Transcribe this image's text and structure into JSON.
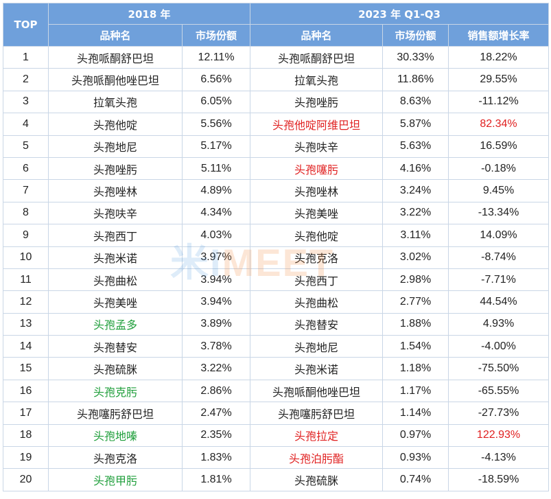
{
  "header": {
    "top_label": "TOP",
    "group_2018": "2018 年",
    "group_2023": "2023 年 Q1-Q3",
    "col_name_2018": "品种名",
    "col_share_2018": "市场份额",
    "col_name_2023": "品种名",
    "col_share_2023": "市场份额",
    "col_growth_2023": "销售额增长率"
  },
  "colors": {
    "header_bg": "#6fa0db",
    "red": "#e02020",
    "green": "#1e9e3a",
    "default": "#222222"
  },
  "watermark": {
    "part_a": "米I",
    "part_b": "MEET"
  },
  "rows": [
    {
      "rank": "1",
      "name2018": "头孢哌酮舒巴坦",
      "share2018": "12.11%",
      "name2023": "头孢哌酮舒巴坦",
      "share2023": "30.33%",
      "growth": "18.22%"
    },
    {
      "rank": "2",
      "name2018": "头孢哌酮他唑巴坦",
      "share2018": "6.56%",
      "name2023": "拉氧头孢",
      "share2023": "11.86%",
      "growth": "29.55%"
    },
    {
      "rank": "3",
      "name2018": "拉氧头孢",
      "share2018": "6.05%",
      "name2023": "头孢唑肟",
      "share2023": "8.63%",
      "growth": "-11.12%"
    },
    {
      "rank": "4",
      "name2018": "头孢他啶",
      "share2018": "5.56%",
      "name2023": "头孢他啶阿维巴坦",
      "share2023": "5.87%",
      "growth": "82.34%",
      "name2023_color": "red",
      "growth_color": "red"
    },
    {
      "rank": "5",
      "name2018": "头孢地尼",
      "share2018": "5.17%",
      "name2023": "头孢呋辛",
      "share2023": "5.63%",
      "growth": "16.59%"
    },
    {
      "rank": "6",
      "name2018": "头孢唑肟",
      "share2018": "5.11%",
      "name2023": "头孢噻肟",
      "share2023": "4.16%",
      "growth": "-0.18%",
      "name2023_color": "red"
    },
    {
      "rank": "7",
      "name2018": "头孢唑林",
      "share2018": "4.89%",
      "name2023": "头孢唑林",
      "share2023": "3.24%",
      "growth": "9.45%"
    },
    {
      "rank": "8",
      "name2018": "头孢呋辛",
      "share2018": "4.34%",
      "name2023": "头孢美唑",
      "share2023": "3.22%",
      "growth": "-13.34%"
    },
    {
      "rank": "9",
      "name2018": "头孢西丁",
      "share2018": "4.03%",
      "name2023": "头孢他啶",
      "share2023": "3.11%",
      "growth": "14.09%"
    },
    {
      "rank": "10",
      "name2018": "头孢米诺",
      "share2018": "3.97%",
      "name2023": "头孢克洛",
      "share2023": "3.02%",
      "growth": "-8.74%"
    },
    {
      "rank": "11",
      "name2018": "头孢曲松",
      "share2018": "3.94%",
      "name2023": "头孢西丁",
      "share2023": "2.98%",
      "growth": "-7.71%"
    },
    {
      "rank": "12",
      "name2018": "头孢美唑",
      "share2018": "3.94%",
      "name2023": "头孢曲松",
      "share2023": "2.77%",
      "growth": "44.54%"
    },
    {
      "rank": "13",
      "name2018": "头孢孟多",
      "share2018": "3.89%",
      "name2023": "头孢替安",
      "share2023": "1.88%",
      "growth": "4.93%",
      "name2018_color": "green"
    },
    {
      "rank": "14",
      "name2018": "头孢替安",
      "share2018": "3.78%",
      "name2023": "头孢地尼",
      "share2023": "1.54%",
      "growth": "-4.00%"
    },
    {
      "rank": "15",
      "name2018": "头孢硫脒",
      "share2018": "3.22%",
      "name2023": "头孢米诺",
      "share2023": "1.18%",
      "growth": "-75.50%"
    },
    {
      "rank": "16",
      "name2018": "头孢克肟",
      "share2018": "2.86%",
      "name2023": "头孢哌酮他唑巴坦",
      "share2023": "1.17%",
      "growth": "-65.55%",
      "name2018_color": "green"
    },
    {
      "rank": "17",
      "name2018": "头孢噻肟舒巴坦",
      "share2018": "2.47%",
      "name2023": "头孢噻肟舒巴坦",
      "share2023": "1.14%",
      "growth": "-27.73%"
    },
    {
      "rank": "18",
      "name2018": "头孢地嗪",
      "share2018": "2.35%",
      "name2023": "头孢拉定",
      "share2023": "0.97%",
      "growth": "122.93%",
      "name2018_color": "green",
      "name2023_color": "red",
      "growth_color": "red"
    },
    {
      "rank": "19",
      "name2018": "头孢克洛",
      "share2018": "1.83%",
      "name2023": "头孢泊肟酯",
      "share2023": "0.93%",
      "growth": "-4.13%",
      "name2023_color": "red"
    },
    {
      "rank": "20",
      "name2018": "头孢甲肟",
      "share2018": "1.81%",
      "name2023": "头孢硫脒",
      "share2023": "0.74%",
      "growth": "-18.59%",
      "name2018_color": "green"
    }
  ]
}
